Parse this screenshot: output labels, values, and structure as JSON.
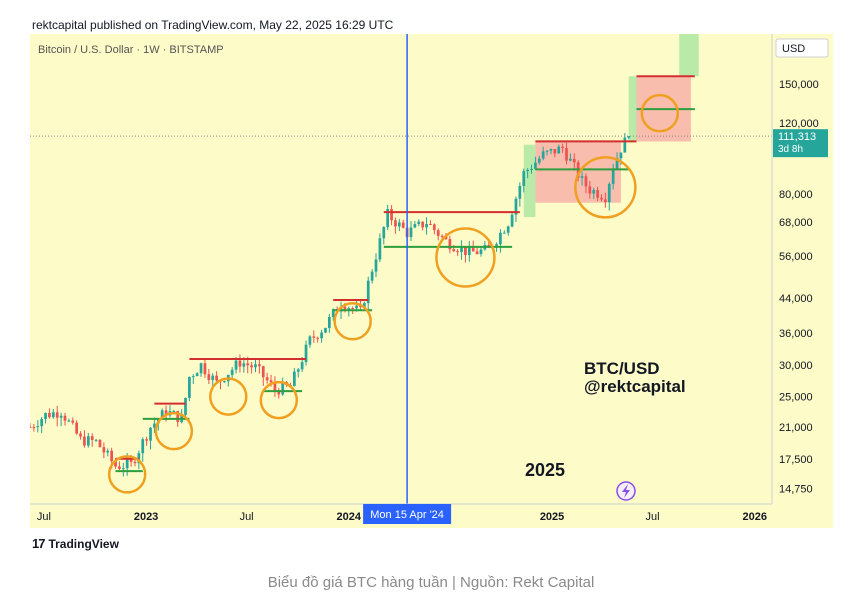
{
  "header": {
    "published_line": "rektcapital published on TradingView.com, May 22, 2025 16:29 UTC"
  },
  "chart": {
    "symbol_line": "Bitcoin / U.S. Dollar · 1W · BITSTAMP",
    "currency": "USD",
    "watermark_pair": "BTC/USD",
    "watermark_handle": "@rektcapital",
    "year_label": "2025",
    "last_price": "111,313",
    "countdown": "3d 8h",
    "crosshair_date": "Mon 15 Apr '24",
    "y_ticks": [
      "150,000",
      "120,000",
      "80,000",
      "68,000",
      "56,000",
      "44,000",
      "36,000",
      "30,000",
      "25,000",
      "21,000",
      "17,500",
      "14,750"
    ],
    "x_ticks": [
      "Jul",
      "2023",
      "Jul",
      "2024",
      "2025",
      "Jul",
      "2026"
    ]
  },
  "footer": {
    "brand": "TradingView",
    "caption": "Biểu đồ giá BTC hàng tuần | Nguồn: Rekt Capital"
  },
  "colors": {
    "up": "#26a69a",
    "down": "#ef5350",
    "crosshair": "#2962ff",
    "resistance": "#d32f2f",
    "support": "#2e9e3e",
    "circle": "#f0a020",
    "background": "#fdfbc8"
  },
  "chart_data": {
    "type": "candlestick",
    "y_scale": "log",
    "ylim": [
      13500,
      200000
    ],
    "x_range": [
      "2022-06-06",
      "2026-02-01"
    ],
    "weekly_close_points": [
      [
        "2022-06-06",
        21000
      ],
      [
        "2022-07-04",
        22500
      ],
      [
        "2022-08-01",
        23000
      ],
      [
        "2022-09-05",
        19500
      ],
      [
        "2022-10-03",
        19300
      ],
      [
        "2022-11-07",
        16800
      ],
      [
        "2022-12-05",
        16900
      ],
      [
        "2023-01-09",
        21000
      ],
      [
        "2023-02-06",
        23000
      ],
      [
        "2023-03-06",
        22000
      ],
      [
        "2023-03-20",
        28000
      ],
      [
        "2023-04-10",
        30000
      ],
      [
        "2023-05-08",
        27000
      ],
      [
        "2023-06-19",
        30500
      ],
      [
        "2023-07-17",
        29500
      ],
      [
        "2023-08-21",
        26000
      ],
      [
        "2023-09-18",
        26500
      ],
      [
        "2023-10-23",
        34500
      ],
      [
        "2023-11-20",
        37500
      ],
      [
        "2023-12-18",
        43000
      ],
      [
        "2024-01-22",
        40500
      ],
      [
        "2024-02-12",
        52000
      ],
      [
        "2024-03-11",
        71000
      ],
      [
        "2024-04-15",
        64000
      ],
      [
        "2024-05-20",
        68000
      ],
      [
        "2024-06-24",
        61000
      ],
      [
        "2024-08-05",
        57000
      ],
      [
        "2024-09-09",
        58000
      ],
      [
        "2024-10-14",
        68000
      ],
      [
        "2024-11-11",
        90000
      ],
      [
        "2024-12-16",
        100000
      ],
      [
        "2025-01-20",
        104000
      ],
      [
        "2025-02-24",
        86000
      ],
      [
        "2025-03-10",
        82000
      ],
      [
        "2025-04-07",
        79000
      ],
      [
        "2025-04-21",
        94000
      ],
      [
        "2025-05-05",
        104000
      ],
      [
        "2025-05-19",
        111313
      ]
    ],
    "horizontal_levels": [
      {
        "kind": "resistance",
        "price": 17500,
        "from": "2022-11-07",
        "to": "2022-12-19"
      },
      {
        "kind": "support",
        "price": 16300,
        "from": "2022-11-07",
        "to": "2022-12-26"
      },
      {
        "kind": "resistance",
        "price": 24000,
        "from": "2023-01-16",
        "to": "2023-03-13"
      },
      {
        "kind": "support",
        "price": 22000,
        "from": "2022-12-26",
        "to": "2023-03-20"
      },
      {
        "kind": "resistance",
        "price": 31000,
        "from": "2023-03-20",
        "to": "2023-10-16"
      },
      {
        "kind": "support",
        "price": 25800,
        "from": "2023-07-31",
        "to": "2023-10-09"
      },
      {
        "kind": "resistance",
        "price": 43500,
        "from": "2023-12-04",
        "to": "2024-02-05"
      },
      {
        "kind": "support",
        "price": 41000,
        "from": "2023-12-04",
        "to": "2024-02-12"
      },
      {
        "kind": "resistance",
        "price": 72000,
        "from": "2024-03-04",
        "to": "2024-11-04"
      },
      {
        "kind": "support",
        "price": 59000,
        "from": "2024-03-04",
        "to": "2024-10-21"
      },
      {
        "kind": "resistance",
        "price": 108000,
        "from": "2024-12-02",
        "to": "2025-06-02"
      },
      {
        "kind": "support",
        "price": 92000,
        "from": "2024-12-02",
        "to": "2025-05-19"
      },
      {
        "kind": "resistance",
        "price": 157000,
        "from": "2025-06-02",
        "to": "2025-09-15"
      },
      {
        "kind": "support",
        "price": 130000,
        "from": "2025-06-02",
        "to": "2025-09-15"
      }
    ],
    "circles": [
      {
        "date": "2022-11-28",
        "price": 16000
      },
      {
        "date": "2023-02-20",
        "price": 20500
      },
      {
        "date": "2023-05-29",
        "price": 25000
      },
      {
        "date": "2023-08-28",
        "price": 24500
      },
      {
        "date": "2024-01-08",
        "price": 38500
      },
      {
        "date": "2024-07-29",
        "price": 55500
      },
      {
        "date": "2025-04-07",
        "price": 83000
      },
      {
        "date": "2025-07-14",
        "price": 127000
      }
    ],
    "zones": [
      {
        "color": "green",
        "from": "2024-11-11",
        "to": "2024-12-02",
        "price_low": 70000,
        "price_high": 106000
      },
      {
        "color": "red",
        "from": "2024-12-02",
        "to": "2025-05-05",
        "price_low": 76000,
        "price_high": 108000
      },
      {
        "color": "green",
        "from": "2025-05-19",
        "to": "2025-06-02",
        "price_low": 108000,
        "price_high": 157000
      },
      {
        "color": "red",
        "from": "2025-06-02",
        "to": "2025-09-08",
        "price_low": 108000,
        "price_high": 157000
      },
      {
        "color": "green",
        "from": "2025-08-18",
        "to": "2025-09-22",
        "price_low": 157000,
        "price_high": 200000
      }
    ]
  }
}
